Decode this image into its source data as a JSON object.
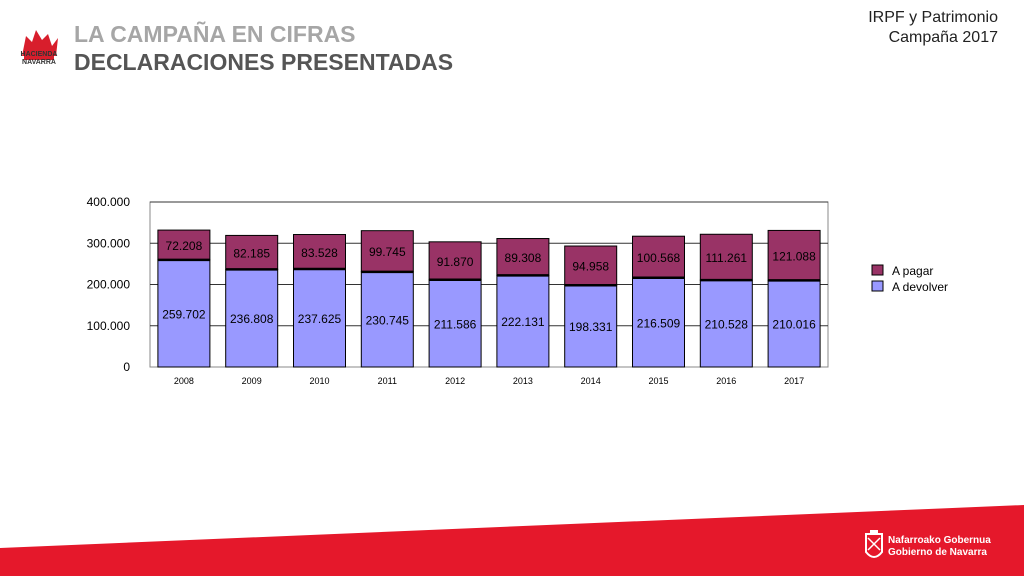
{
  "header": {
    "logo_text_1": "HACIENDA",
    "logo_text_2": "NAVARRA",
    "title_line1": "LA CAMPAÑA EN CIFRAS",
    "title_line2": "DECLARACIONES PRESENTADAS",
    "topright_line1": "IRPF y Patrimonio",
    "topright_line2": "Campaña 2017"
  },
  "footer": {
    "gov_line1": "Nafarroako Gobernua",
    "gov_line2": "Gobierno de Navarra",
    "band_color": "#e5182b"
  },
  "chart_data": {
    "type": "bar",
    "stacked": true,
    "categories": [
      "2008",
      "2009",
      "2010",
      "2011",
      "2012",
      "2013",
      "2014",
      "2015",
      "2016",
      "2017"
    ],
    "series": [
      {
        "name": "A devolver",
        "color": "#9999ff",
        "values": [
          259702,
          236808,
          237625,
          230745,
          211586,
          222131,
          198331,
          216509,
          210528,
          210016
        ],
        "labels": [
          "259.702",
          "236.808",
          "237.625",
          "230.745",
          "211.586",
          "222.131",
          "198.331",
          "216.509",
          "210.528",
          "210.016"
        ]
      },
      {
        "name": "A pagar",
        "color": "#993366",
        "values": [
          72208,
          82185,
          83528,
          99745,
          91870,
          89308,
          94958,
          100568,
          111261,
          121088
        ],
        "labels": [
          "72.208",
          "82.185",
          "83.528",
          "99.745",
          "91.870",
          "89.308",
          "94.958",
          "100.568",
          "111.261",
          "121.088"
        ]
      }
    ],
    "ylim": [
      0,
      400000
    ],
    "yticks": [
      0,
      100000,
      200000,
      300000,
      400000
    ],
    "ytick_labels": [
      "0",
      "100.000",
      "200.000",
      "300.000",
      "400.000"
    ],
    "legend": [
      "A pagar",
      "A devolver"
    ],
    "legend_position": "right",
    "grid": true
  }
}
